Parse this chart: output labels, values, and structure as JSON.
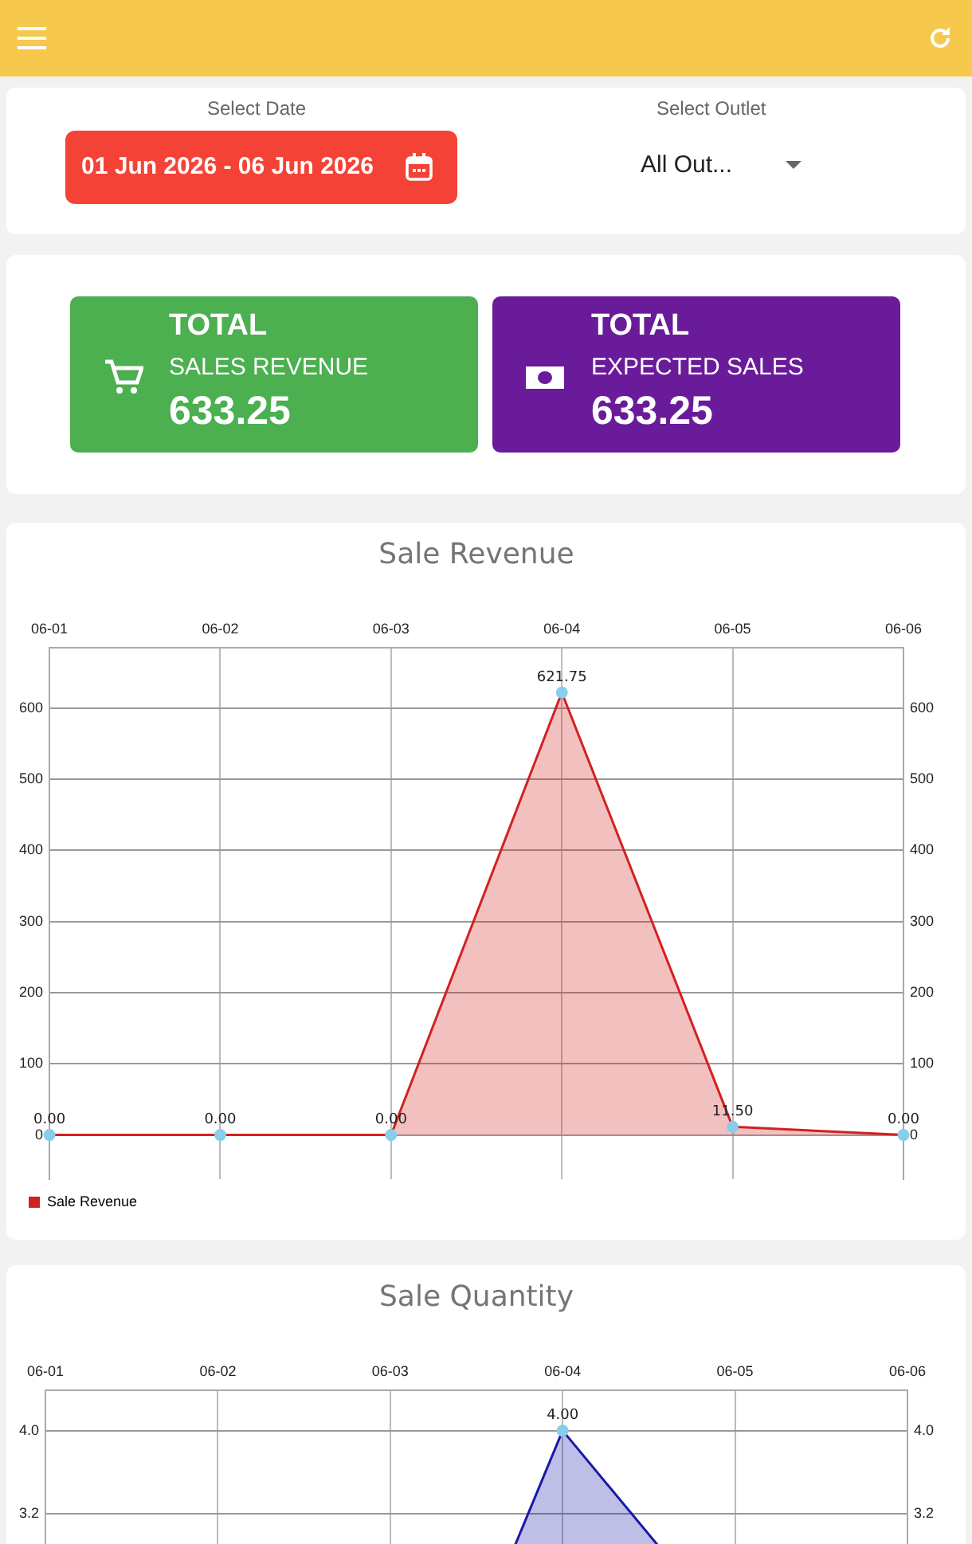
{
  "chart_data": [
    {
      "type": "other",
      "annotations": [
        "Select Date",
        "01 Jun 2026  - 06 Jun 2026",
        "Select Outlet",
        "All Out..."
      ]
    },
    {
      "type": "other",
      "colors": [
        "#4caf50",
        "#6a1b9a"
      ],
      "annotations": [
        "TOTAL",
        "SALES REVENUE",
        "633.25",
        "TOTAL",
        "EXPECTED SALES",
        "633.25"
      ]
    },
    {
      "type": "area",
      "title": "Sale Revenue",
      "categories": [
        "06-01",
        "06-02",
        "06-03",
        "06-04",
        "06-05",
        "06-06"
      ],
      "series": [
        {
          "name": "Sale Revenue",
          "color": "#d32020",
          "values": [
            0,
            0,
            0,
            621.75,
            11.5,
            0
          ],
          "value_labels": [
            "0.00",
            "0.00",
            "0.00",
            "621.75",
            "11.50",
            "0.00"
          ]
        }
      ],
      "ylim": [
        -62,
        685
      ],
      "yticks": [
        0,
        100,
        200,
        300,
        400,
        500,
        600
      ],
      "y2lim": [
        -62,
        685
      ],
      "y2ticks": [
        0,
        100,
        200,
        300,
        400,
        500,
        600
      ],
      "grid": true,
      "legend": "bottom left",
      "marker": "circle"
    },
    {
      "type": "area",
      "title": "Sale Quantity",
      "categories": [
        "06-01",
        "06-02",
        "06-03",
        "06-04",
        "06-05",
        "06-06"
      ],
      "series": [
        {
          "color": "#1a1aa8",
          "values": [
            0,
            0,
            0,
            4,
            2,
            0
          ],
          "value_labels": [
            null,
            null,
            null,
            "4.00",
            null,
            null
          ]
        }
      ],
      "ylim": [
        -0.4,
        4.39
      ],
      "yticks": [
        {
          "value": 3.2,
          "label": "3.2"
        },
        {
          "value": 4,
          "label": "4.0"
        }
      ],
      "y2lim": [
        -0.4,
        4.39
      ],
      "y2ticks": [
        {
          "value": 3.2,
          "label": "3.2"
        },
        {
          "value": 4,
          "label": "4.0"
        }
      ],
      "grid": true,
      "marker": "circle"
    }
  ]
}
